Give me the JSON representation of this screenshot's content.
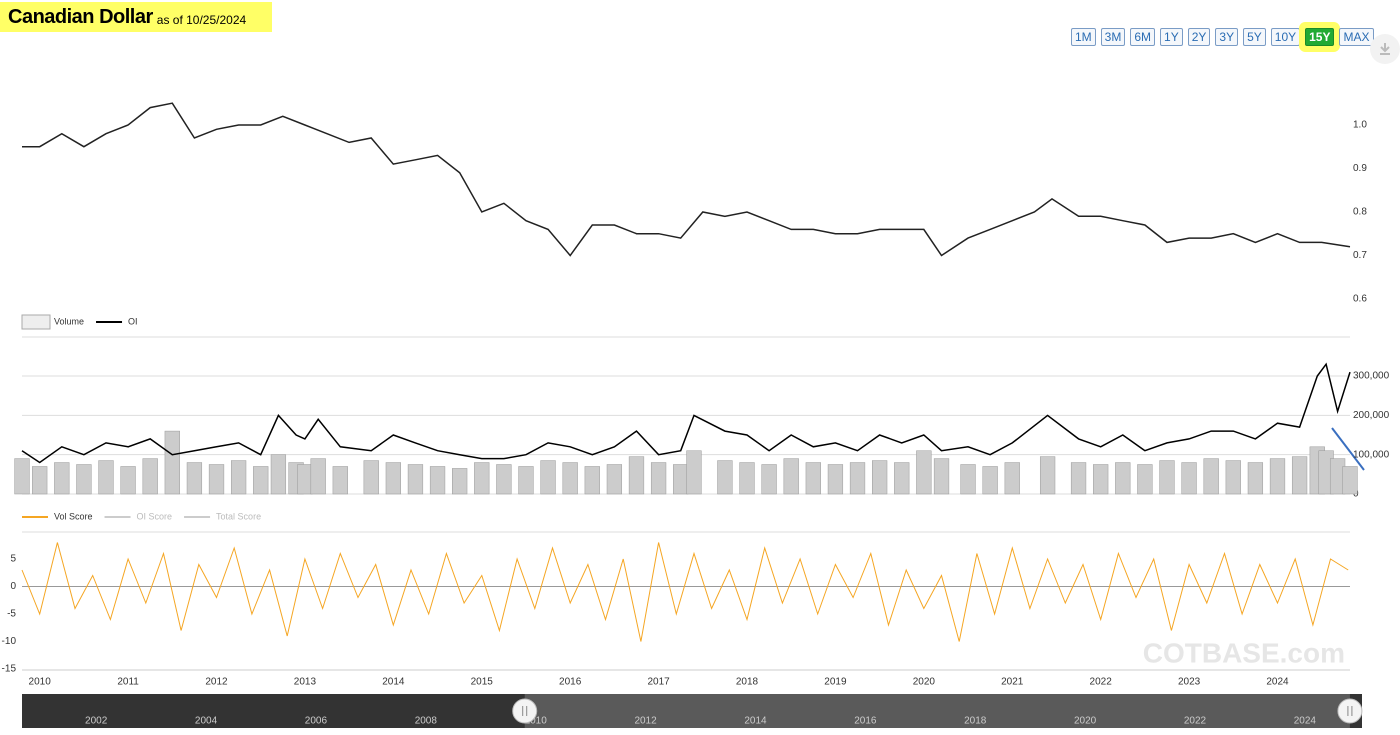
{
  "header": {
    "title": "Canadian Dollar",
    "subtitle": "as of 10/25/2024"
  },
  "range_buttons": [
    "1M",
    "3M",
    "6M",
    "1Y",
    "2Y",
    "3Y",
    "5Y",
    "10Y",
    "15Y",
    "MAX"
  ],
  "selected": "15Y",
  "watermark": "COTBASE.com",
  "chart_data": [
    {
      "type": "line",
      "xlim": [
        2009.8,
        2024.82
      ],
      "ylim": [
        0.6,
        1.07
      ],
      "yticks": [
        0.6,
        0.7,
        0.8,
        0.9,
        {
          "value": 1,
          "label": "1.0"
        }
      ],
      "x": [
        2009.8,
        2010.0,
        2010.25,
        2010.5,
        2010.75,
        2011.0,
        2011.25,
        2011.5,
        2011.75,
        2012.0,
        2012.25,
        2012.5,
        2012.75,
        2013.0,
        2013.25,
        2013.5,
        2013.75,
        2014.0,
        2014.25,
        2014.5,
        2014.75,
        2015.0,
        2015.25,
        2015.5,
        2015.75,
        2016.0,
        2016.25,
        2016.5,
        2016.75,
        2017.0,
        2017.25,
        2017.5,
        2017.75,
        2018.0,
        2018.25,
        2018.5,
        2018.75,
        2019.0,
        2019.25,
        2019.5,
        2019.75,
        2020.0,
        2020.2,
        2020.5,
        2020.75,
        2021.0,
        2021.25,
        2021.45,
        2021.75,
        2022.0,
        2022.25,
        2022.5,
        2022.75,
        2023.0,
        2023.25,
        2023.5,
        2023.75,
        2024.0,
        2024.25,
        2024.5,
        2024.82
      ],
      "series": [
        {
          "kind": "line",
          "color": "#222222",
          "values": [
            0.95,
            0.95,
            0.98,
            0.95,
            0.98,
            1.0,
            1.04,
            1.05,
            0.97,
            0.99,
            1.0,
            1.0,
            1.02,
            1.0,
            0.98,
            0.96,
            0.97,
            0.91,
            0.92,
            0.93,
            0.89,
            0.8,
            0.82,
            0.78,
            0.76,
            0.7,
            0.77,
            0.77,
            0.75,
            0.75,
            0.74,
            0.8,
            0.79,
            0.8,
            0.78,
            0.76,
            0.76,
            0.75,
            0.75,
            0.76,
            0.76,
            0.76,
            0.7,
            0.74,
            0.76,
            0.78,
            0.8,
            0.83,
            0.79,
            0.79,
            0.78,
            0.77,
            0.73,
            0.74,
            0.74,
            0.75,
            0.73,
            0.75,
            0.73,
            0.73,
            0.72
          ]
        }
      ]
    },
    {
      "type": "combo",
      "xlim": [
        2009.8,
        2024.82
      ],
      "ylim": [
        0,
        400000
      ],
      "grid": true,
      "yticks": [
        0,
        {
          "value": 100000,
          "label": "100,000"
        },
        {
          "value": 200000,
          "label": "200,000"
        },
        {
          "value": 300000,
          "label": "300,000"
        }
      ],
      "x": [
        2009.8,
        2010.0,
        2010.25,
        2010.5,
        2010.75,
        2011.0,
        2011.25,
        2011.5,
        2011.75,
        2012.0,
        2012.25,
        2012.5,
        2012.7,
        2012.9,
        2013.0,
        2013.15,
        2013.4,
        2013.75,
        2014.0,
        2014.25,
        2014.5,
        2014.75,
        2015.0,
        2015.25,
        2015.5,
        2015.75,
        2016.0,
        2016.25,
        2016.5,
        2016.75,
        2017.0,
        2017.25,
        2017.4,
        2017.75,
        2018.0,
        2018.25,
        2018.5,
        2018.75,
        2019.0,
        2019.25,
        2019.5,
        2019.75,
        2020.0,
        2020.2,
        2020.5,
        2020.75,
        2021.0,
        2021.4,
        2021.75,
        2022.0,
        2022.25,
        2022.5,
        2022.75,
        2023.0,
        2023.25,
        2023.5,
        2023.75,
        2024.0,
        2024.25,
        2024.45,
        2024.55,
        2024.68,
        2024.82
      ],
      "series": [
        {
          "name": "Volume",
          "kind": "bar",
          "color": "#cccccc",
          "values": [
            90000,
            70000,
            80000,
            75000,
            85000,
            70000,
            90000,
            160000,
            80000,
            75000,
            85000,
            70000,
            100000,
            80000,
            75000,
            90000,
            70000,
            85000,
            80000,
            75000,
            70000,
            65000,
            80000,
            75000,
            70000,
            85000,
            80000,
            70000,
            75000,
            95000,
            80000,
            75000,
            110000,
            85000,
            80000,
            75000,
            90000,
            80000,
            75000,
            80000,
            85000,
            80000,
            110000,
            90000,
            75000,
            70000,
            80000,
            95000,
            80000,
            75000,
            80000,
            75000,
            85000,
            80000,
            90000,
            85000,
            80000,
            90000,
            95000,
            120000,
            110000,
            90000,
            70000
          ]
        },
        {
          "name": "OI",
          "kind": "line",
          "color": "#000000",
          "values": [
            110000,
            80000,
            120000,
            100000,
            130000,
            120000,
            140000,
            100000,
            110000,
            120000,
            130000,
            100000,
            200000,
            150000,
            140000,
            190000,
            120000,
            110000,
            150000,
            130000,
            110000,
            100000,
            90000,
            90000,
            100000,
            130000,
            120000,
            100000,
            120000,
            160000,
            100000,
            110000,
            200000,
            160000,
            150000,
            110000,
            150000,
            120000,
            130000,
            110000,
            150000,
            130000,
            150000,
            110000,
            120000,
            100000,
            130000,
            200000,
            140000,
            120000,
            150000,
            110000,
            130000,
            140000,
            160000,
            160000,
            140000,
            180000,
            170000,
            300000,
            330000,
            210000,
            310000
          ]
        }
      ]
    },
    {
      "type": "line",
      "xlim": [
        2009.8,
        2024.82
      ],
      "ylim": [
        -15.3,
        9.5
      ],
      "yticks": [
        -15,
        -10,
        -5,
        0,
        5
      ],
      "xticks": [
        2010,
        2011,
        2012,
        2013,
        2014,
        2015,
        2016,
        2017,
        2018,
        2019,
        2020,
        2021,
        2022,
        2023,
        2024
      ],
      "legend_inactive": [
        "OI Score",
        "Total Score"
      ],
      "x": [
        2009.8,
        2010,
        2010.2,
        2010.4,
        2010.6,
        2010.8,
        2011,
        2011.2,
        2011.4,
        2011.6,
        2011.8,
        2012,
        2012.2,
        2012.4,
        2012.6,
        2012.8,
        2013,
        2013.2,
        2013.4,
        2013.6,
        2013.8,
        2014,
        2014.2,
        2014.4,
        2014.6,
        2014.8,
        2015,
        2015.2,
        2015.4,
        2015.6,
        2015.8,
        2016,
        2016.2,
        2016.4,
        2016.6,
        2016.8,
        2017,
        2017.2,
        2017.4,
        2017.6,
        2017.8,
        2018,
        2018.2,
        2018.4,
        2018.6,
        2018.8,
        2019,
        2019.2,
        2019.4,
        2019.6,
        2019.8,
        2020,
        2020.2,
        2020.4,
        2020.6,
        2020.8,
        2021,
        2021.2,
        2021.4,
        2021.6,
        2021.8,
        2022,
        2022.2,
        2022.4,
        2022.6,
        2022.8,
        2023,
        2023.2,
        2023.4,
        2023.6,
        2023.8,
        2024,
        2024.2,
        2024.4,
        2024.6,
        2024.8
      ],
      "series": [
        {
          "name": "Vol Score",
          "kind": "line",
          "color": "#f5a623",
          "values": [
            3,
            -5,
            8,
            -4,
            2,
            -6,
            5,
            -3,
            6,
            -8,
            4,
            -2,
            7,
            -5,
            3,
            -9,
            5,
            -4,
            6,
            -2,
            4,
            -7,
            3,
            -5,
            6,
            -3,
            2,
            -8,
            5,
            -4,
            7,
            -3,
            4,
            -6,
            5,
            -10,
            8,
            -5,
            6,
            -4,
            3,
            -6,
            7,
            -3,
            5,
            -5,
            4,
            -2,
            6,
            -7,
            3,
            -4,
            2,
            -10,
            6,
            -5,
            7,
            -4,
            5,
            -3,
            4,
            -6,
            6,
            -2,
            5,
            -8,
            4,
            -3,
            6,
            -5,
            4,
            -3,
            5,
            -7,
            5,
            3
          ]
        }
      ]
    }
  ],
  "navigator": {
    "xlim": [
      2000.65,
      2025.04
    ],
    "xticks": [
      2002,
      2004,
      2006,
      2008,
      2010,
      2012,
      2014,
      2016,
      2018,
      2020,
      2022,
      2024
    ]
  }
}
